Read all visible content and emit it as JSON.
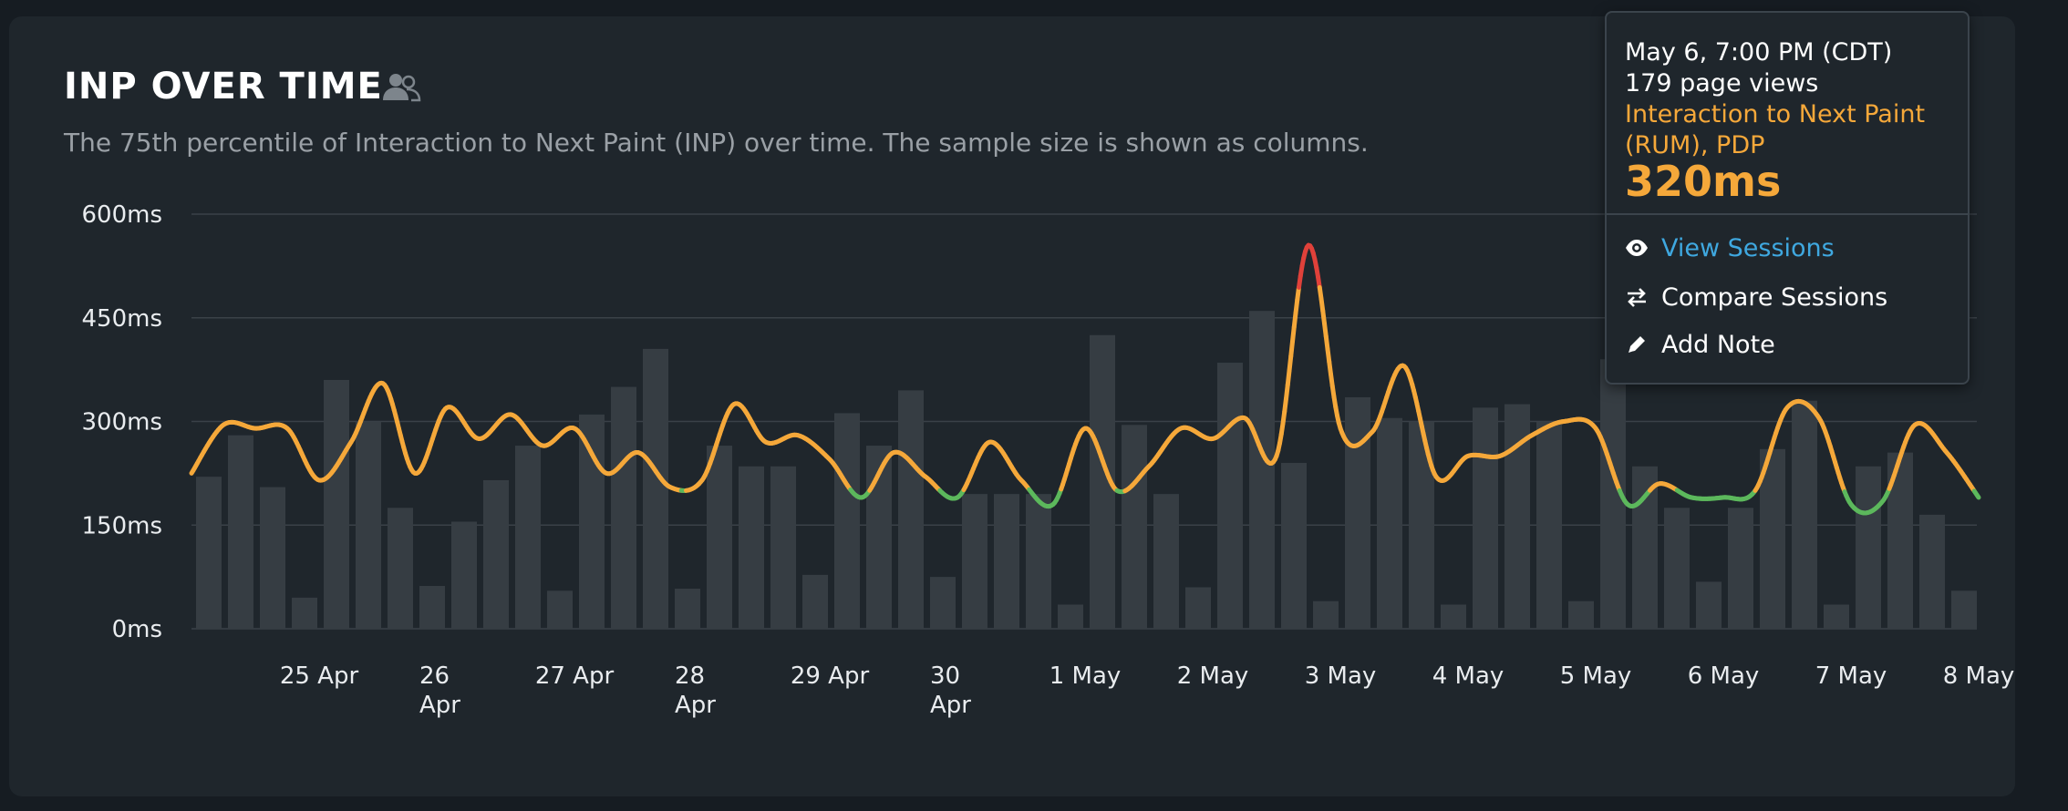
{
  "header": {
    "title": "INP OVER TIME",
    "title_icon": "users-icon",
    "subtitle": "The 75th percentile of Interaction to Next Paint (INP) over time. The sample size is shown as columns."
  },
  "tooltip": {
    "datetime": "May 6, 7:00 PM (CDT)",
    "page_views": "179 page views",
    "metric_line1": "Interaction to Next Paint",
    "metric_line2": "(RUM), PDP",
    "value": "320ms",
    "actions": [
      {
        "label": "View Sessions",
        "icon": "eye-icon"
      },
      {
        "label": "Compare Sessions",
        "icon": "swap-arrows-icon"
      },
      {
        "label": "Add Note",
        "icon": "pencil-icon"
      }
    ]
  },
  "colors": {
    "line_default": "#f5a83a",
    "line_good": "#5cb85c",
    "line_poor": "#e0413a",
    "bars": "#363d43",
    "grid": "#3a4148"
  },
  "chart_data": {
    "type": "line",
    "title": "INP OVER TIME",
    "ylabel": "",
    "xlabel": "",
    "ylim": [
      0,
      600
    ],
    "yticks": [
      "0ms",
      "150ms",
      "300ms",
      "450ms",
      "600ms"
    ],
    "ytick_values": [
      0,
      150,
      300,
      450,
      600
    ],
    "x_labels": [
      {
        "label": "25 Apr",
        "day": 1
      },
      {
        "label": "26\nApr",
        "day": 2
      },
      {
        "label": "27 Apr",
        "day": 3
      },
      {
        "label": "28\nApr",
        "day": 4
      },
      {
        "label": "29 Apr",
        "day": 5
      },
      {
        "label": "30\nApr",
        "day": 6
      },
      {
        "label": "1 May",
        "day": 7
      },
      {
        "label": "2 May",
        "day": 8
      },
      {
        "label": "3 May",
        "day": 9
      },
      {
        "label": "4 May",
        "day": 10
      },
      {
        "label": "5 May",
        "day": 11
      },
      {
        "label": "6 May",
        "day": 12
      },
      {
        "label": "7 May",
        "day": 13
      },
      {
        "label": "8 May",
        "day": 14
      }
    ],
    "thresholds": {
      "good": 200,
      "poor": 500
    },
    "series": [
      {
        "name": "INP p75",
        "x": [
          0.0,
          0.25,
          0.5,
          0.75,
          1.0,
          1.25,
          1.5,
          1.75,
          2.0,
          2.25,
          2.5,
          2.75,
          3.0,
          3.25,
          3.5,
          3.75,
          4.0,
          4.25,
          4.5,
          4.75,
          5.0,
          5.25,
          5.5,
          5.75,
          6.0,
          6.25,
          6.5,
          6.75,
          7.0,
          7.25,
          7.5,
          7.75,
          8.0,
          8.25,
          8.5,
          8.75,
          9.0,
          9.25,
          9.5,
          9.75,
          10.0,
          10.25,
          10.5,
          10.75,
          11.0,
          11.25,
          11.5,
          11.75,
          12.0,
          12.25,
          12.5,
          12.75,
          13.0,
          13.25,
          13.5,
          13.75,
          14.0
        ],
        "values": [
          225,
          295,
          290,
          290,
          215,
          270,
          355,
          225,
          320,
          275,
          310,
          265,
          290,
          225,
          255,
          205,
          215,
          325,
          270,
          280,
          245,
          190,
          255,
          220,
          190,
          270,
          215,
          180,
          290,
          200,
          235,
          290,
          275,
          305,
          250,
          555,
          290,
          285,
          380,
          220,
          250,
          250,
          280,
          300,
          290,
          180,
          210,
          190,
          190,
          200,
          320,
          305,
          180,
          185,
          295,
          255,
          190
        ]
      },
      {
        "name": "page views",
        "type": "bar",
        "values": [
          220,
          280,
          205,
          45,
          360,
          300,
          175,
          62,
          155,
          215,
          265,
          55,
          310,
          350,
          405,
          58,
          265,
          235,
          235,
          78,
          312,
          265,
          345,
          75,
          195,
          195,
          195,
          35,
          425,
          295,
          195,
          60,
          385,
          460,
          240,
          40,
          335,
          305,
          300,
          35,
          320,
          325,
          300,
          40,
          390,
          235,
          175,
          68,
          175,
          260,
          330,
          35,
          235,
          255,
          165,
          55
        ]
      }
    ]
  }
}
